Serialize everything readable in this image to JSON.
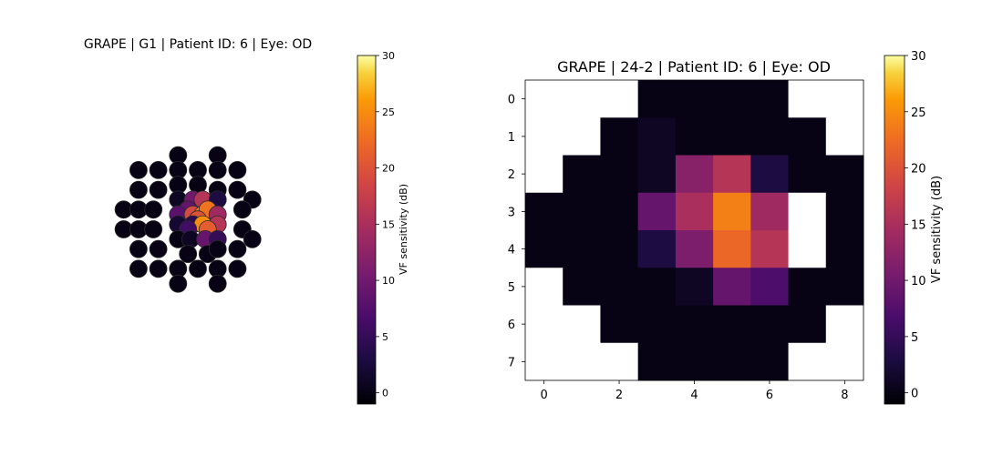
{
  "colormap": "inferno",
  "chart_data": [
    {
      "type": "scatter",
      "title": "GRAPE | G1 | Patient ID: 6 | Eye: OD",
      "colorbar": {
        "label": "VF sensitivity (dB)",
        "range": [
          -1,
          30
        ],
        "ticks": [
          0,
          5,
          10,
          15,
          20,
          25,
          30
        ]
      },
      "points": [
        {
          "x": -2,
          "y": 7.5,
          "v": 0
        },
        {
          "x": 2,
          "y": 7.5,
          "v": 0
        },
        {
          "x": -6,
          "y": 6,
          "v": 0
        },
        {
          "x": -4,
          "y": 6,
          "v": 0
        },
        {
          "x": -2,
          "y": 6,
          "v": 0
        },
        {
          "x": 0,
          "y": 6,
          "v": 0
        },
        {
          "x": 2,
          "y": 6,
          "v": 0
        },
        {
          "x": 4,
          "y": 6,
          "v": 0
        },
        {
          "x": -6,
          "y": 4,
          "v": 0
        },
        {
          "x": -4,
          "y": 4,
          "v": 0
        },
        {
          "x": -2,
          "y": 4.5,
          "v": 0
        },
        {
          "x": 0,
          "y": 4.5,
          "v": 0
        },
        {
          "x": 2,
          "y": 4,
          "v": 0
        },
        {
          "x": 4,
          "y": 4,
          "v": 0
        },
        {
          "x": -2,
          "y": 3,
          "v": 1
        },
        {
          "x": -0.5,
          "y": 3,
          "v": 10
        },
        {
          "x": 0.5,
          "y": 3,
          "v": 16
        },
        {
          "x": 2,
          "y": 3,
          "v": 3
        },
        {
          "x": 5.5,
          "y": 3,
          "v": 0
        },
        {
          "x": -7.5,
          "y": 2,
          "v": 0
        },
        {
          "x": -6,
          "y": 2,
          "v": 0
        },
        {
          "x": -4.5,
          "y": 2,
          "v": 0
        },
        {
          "x": -1,
          "y": 2,
          "v": 9
        },
        {
          "x": 4.5,
          "y": 2,
          "v": 0
        },
        {
          "x": -2,
          "y": 1.5,
          "v": 8
        },
        {
          "x": -0.5,
          "y": 1.5,
          "v": 19
        },
        {
          "x": 0.5,
          "y": 1.5,
          "v": 24
        },
        {
          "x": 1,
          "y": 2,
          "v": 23
        },
        {
          "x": 2,
          "y": 1.5,
          "v": 14
        },
        {
          "x": 0,
          "y": 1,
          "v": 20
        },
        {
          "x": -7.5,
          "y": 0,
          "v": 0
        },
        {
          "x": -6,
          "y": 0,
          "v": 0
        },
        {
          "x": -4.5,
          "y": 0,
          "v": 0
        },
        {
          "x": 4.5,
          "y": 0,
          "v": 0
        },
        {
          "x": -2,
          "y": 0.5,
          "v": 2
        },
        {
          "x": -0.5,
          "y": 0.5,
          "v": 4
        },
        {
          "x": 0.5,
          "y": 0.5,
          "v": 25
        },
        {
          "x": 2,
          "y": 0.5,
          "v": 16
        },
        {
          "x": -1,
          "y": 0,
          "v": 6
        },
        {
          "x": 1,
          "y": 0,
          "v": 21
        },
        {
          "x": -2,
          "y": -1,
          "v": 0
        },
        {
          "x": -0.75,
          "y": -1,
          "v": 1
        },
        {
          "x": 0.75,
          "y": -1,
          "v": 9
        },
        {
          "x": 2,
          "y": -1,
          "v": 5
        },
        {
          "x": 5.5,
          "y": -1,
          "v": 0
        },
        {
          "x": -6,
          "y": -2,
          "v": 0
        },
        {
          "x": -4,
          "y": -2,
          "v": 0
        },
        {
          "x": -1,
          "y": -2.5,
          "v": 0
        },
        {
          "x": 1,
          "y": -2.5,
          "v": 0
        },
        {
          "x": 2,
          "y": -2,
          "v": 0
        },
        {
          "x": 4,
          "y": -2,
          "v": 0
        },
        {
          "x": -6,
          "y": -4,
          "v": 0
        },
        {
          "x": -4,
          "y": -4,
          "v": 0
        },
        {
          "x": -2,
          "y": -4,
          "v": 0
        },
        {
          "x": 0,
          "y": -4,
          "v": 0
        },
        {
          "x": 2,
          "y": -4,
          "v": 0
        },
        {
          "x": 4,
          "y": -4,
          "v": 0
        },
        {
          "x": -2,
          "y": -5.5,
          "v": 0
        },
        {
          "x": 2,
          "y": -5.5,
          "v": 0
        }
      ]
    },
    {
      "type": "heatmap",
      "title": "GRAPE | 24-2 | Patient ID: 6 | Eye: OD",
      "x_ticks": [
        0,
        2,
        4,
        6,
        8
      ],
      "y_ticks": [
        0,
        1,
        2,
        3,
        4,
        5,
        6,
        7
      ],
      "colorbar": {
        "label": "VF sensitivity (dB)",
        "range": [
          -1,
          30
        ],
        "ticks": [
          0,
          5,
          10,
          15,
          20,
          25,
          30
        ]
      },
      "grid": [
        [
          null,
          null,
          null,
          0,
          0,
          0,
          0,
          null,
          null
        ],
        [
          null,
          null,
          0,
          1,
          0,
          0,
          0,
          0,
          null
        ],
        [
          null,
          0,
          0,
          1,
          12,
          16,
          3,
          0,
          0
        ],
        [
          0,
          0,
          0,
          9,
          15,
          24,
          14,
          null,
          0
        ],
        [
          0,
          0,
          0,
          3,
          11,
          22,
          16,
          null,
          0
        ],
        [
          null,
          0,
          0,
          0,
          1,
          9,
          7,
          0,
          0
        ],
        [
          null,
          null,
          0,
          0,
          0,
          0,
          0,
          0,
          null
        ],
        [
          null,
          null,
          null,
          0,
          0,
          0,
          0,
          null,
          null
        ]
      ]
    }
  ]
}
